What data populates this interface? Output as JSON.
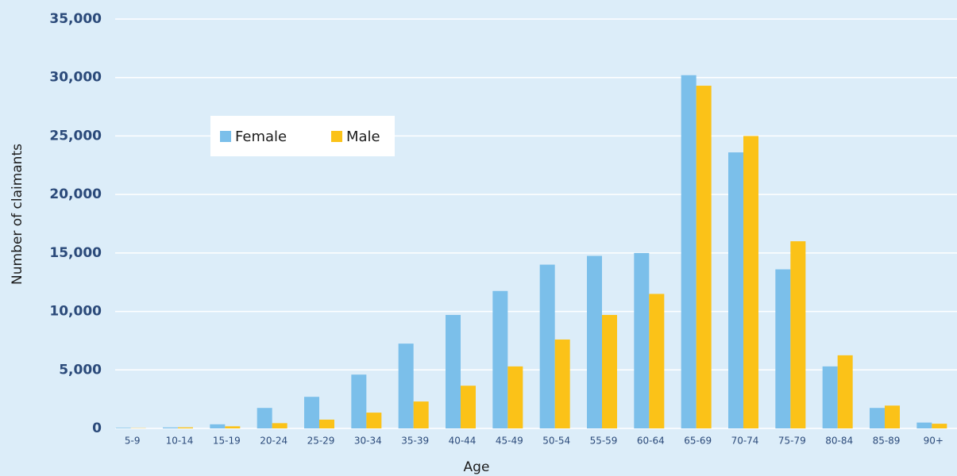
{
  "chart_data": {
    "type": "bar",
    "xlabel": "Age",
    "ylabel": "Number of claimants",
    "categories": [
      "5-9",
      "10-14",
      "15-19",
      "20-24",
      "25-29",
      "30-34",
      "35-39",
      "40-44",
      "45-49",
      "50-54",
      "55-59",
      "60-64",
      "65-69",
      "70-74",
      "75-79",
      "80-84",
      "85-89",
      "90+"
    ],
    "series": [
      {
        "name": "Female",
        "color": "#7bbfea",
        "values": [
          50,
          80,
          350,
          1750,
          2700,
          4600,
          7250,
          9700,
          11750,
          14000,
          14750,
          15000,
          30200,
          23600,
          13600,
          5300,
          1750,
          500
        ]
      },
      {
        "name": "Male",
        "color": "#fbc218",
        "values": [
          20,
          90,
          180,
          450,
          750,
          1350,
          2300,
          3650,
          5300,
          7600,
          9700,
          11500,
          29300,
          25000,
          16000,
          6250,
          1950,
          400
        ]
      }
    ],
    "ylim": [
      0,
      35000
    ],
    "yticks": [
      0,
      {
        "value": 5000,
        "label": "5,000"
      },
      {
        "value": 10000,
        "label": "10,000"
      },
      {
        "value": 15000,
        "label": "15,000"
      },
      {
        "value": 20000,
        "label": "20,000"
      },
      {
        "value": 25000,
        "label": "25,000"
      },
      {
        "value": 30000,
        "label": "30,000"
      },
      {
        "value": 35000,
        "label": "35,000"
      }
    ],
    "grid": true,
    "legend": "upper left"
  }
}
